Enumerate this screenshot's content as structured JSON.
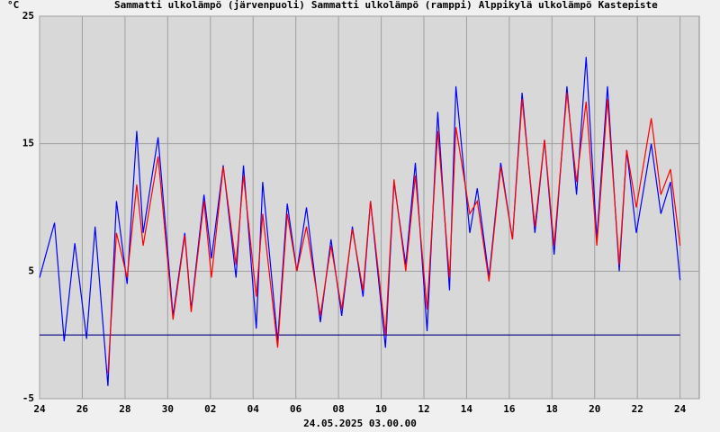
{
  "chart_data": {
    "type": "line",
    "y_label": "°C",
    "x_label": "24.05.2025 03.00.00",
    "xlim": [
      0,
      30.9
    ],
    "ylim": [
      -5,
      25
    ],
    "yticks": [
      -5,
      5,
      15,
      25
    ],
    "xticks": [
      {
        "value": 0,
        "label": "24"
      },
      {
        "value": 2,
        "label": "26"
      },
      {
        "value": 4,
        "label": "28"
      },
      {
        "value": 6,
        "label": "30"
      },
      {
        "value": 8,
        "label": "02"
      },
      {
        "value": 10,
        "label": "04"
      },
      {
        "value": 12,
        "label": "06"
      },
      {
        "value": 14,
        "label": "08"
      },
      {
        "value": 16,
        "label": "10"
      },
      {
        "value": 18,
        "label": "12"
      },
      {
        "value": 20,
        "label": "14"
      },
      {
        "value": 22,
        "label": "16"
      },
      {
        "value": 24,
        "label": "18"
      },
      {
        "value": 26,
        "label": "20"
      },
      {
        "value": 28,
        "label": "22"
      },
      {
        "value": 30,
        "label": "24"
      }
    ],
    "grid": true,
    "x": [
      0,
      0.7,
      1.15,
      1.65,
      2.2,
      2.6,
      3.2,
      3.6,
      4.1,
      4.55,
      4.85,
      5.55,
      6.25,
      6.8,
      7.1,
      7.7,
      8.05,
      8.6,
      9.2,
      9.55,
      10.15,
      10.45,
      11.15,
      11.6,
      12.05,
      12.5,
      13.15,
      13.65,
      14.15,
      14.65,
      15.15,
      15.5,
      16.2,
      16.6,
      17.15,
      17.6,
      18.15,
      18.65,
      19.2,
      19.5,
      20.15,
      20.5,
      21.05,
      21.6,
      22.15,
      22.6,
      23.2,
      23.65,
      24.1,
      24.7,
      25.15,
      25.6,
      26.1,
      26.6,
      27.15,
      27.5,
      27.95,
      28.65,
      29.1,
      29.55,
      30
    ],
    "series": [
      {
        "name": "Sammatti ulkolämpö (järvenpuoli)",
        "color": "#0000ff",
        "legend_color": "#000099",
        "values": [
          4.5,
          8.8,
          -0.5,
          7.2,
          -0.3,
          8.5,
          -4,
          10.5,
          4,
          16,
          8,
          15.5,
          1.5,
          8,
          2,
          11,
          6,
          13.3,
          4.5,
          13.3,
          0.5,
          12,
          -0.5,
          10.3,
          5,
          10,
          1,
          7.5,
          1.5,
          8.5,
          3,
          10.5,
          -1,
          12,
          5.5,
          13.5,
          0.3,
          17.5,
          3.5,
          19.5,
          8,
          11.5,
          4.5,
          13.5,
          7.5,
          19,
          8,
          15.3,
          6.3,
          19.5,
          11,
          21.8,
          7.5,
          19.5,
          5,
          14.5,
          8,
          15,
          9.5,
          12,
          4.3
        ]
      },
      {
        "name": "Sammatti ulkolämpö (ramppi)",
        "color": "#000080",
        "legend_color": "#000099",
        "values": [
          0,
          0,
          0,
          0,
          0,
          0,
          0,
          0,
          0,
          0,
          0,
          0,
          0,
          0,
          0,
          0,
          0,
          0,
          0,
          0,
          0,
          0,
          0,
          0,
          0,
          0,
          0,
          0,
          0,
          0,
          0,
          0,
          0,
          0,
          0,
          0,
          0,
          0,
          0,
          0,
          0,
          0,
          0,
          0,
          0,
          0,
          0,
          0,
          0,
          0,
          0,
          0,
          0,
          0,
          0,
          0,
          0,
          0,
          0,
          0,
          0
        ]
      },
      {
        "name": "Alppikylä ulkolämpö",
        "color": "#ff0000",
        "legend_color": "#ff0000",
        "values": [
          null,
          null,
          null,
          null,
          null,
          null,
          -3,
          8,
          4.5,
          11.8,
          7,
          14,
          1.2,
          7.8,
          1.8,
          10.5,
          4.5,
          13.2,
          5.5,
          12.5,
          3,
          9.5,
          -1,
          9.5,
          5,
          8.5,
          1.5,
          7,
          2,
          8.3,
          3.5,
          10.5,
          0,
          12.2,
          5,
          12.5,
          2,
          16,
          4.5,
          16.3,
          9.5,
          10.5,
          4.2,
          13.2,
          7.5,
          18.5,
          8.5,
          15.3,
          7,
          19,
          12,
          18.3,
          7,
          18.5,
          5.5,
          14.5,
          10,
          17,
          11,
          13,
          7
        ]
      },
      {
        "name": "Kastepiste",
        "color": "#008000",
        "legend_color": "#008000",
        "values": [
          null,
          null,
          null,
          null,
          null,
          null,
          null,
          null,
          null,
          null,
          null,
          null,
          null,
          null,
          null,
          null,
          null,
          null,
          null,
          null,
          null,
          null,
          null,
          null,
          null,
          null,
          null,
          null,
          null,
          null,
          null,
          null,
          null,
          null,
          null,
          null,
          null,
          null,
          null,
          null,
          null,
          null,
          null,
          null,
          null,
          null,
          null,
          null,
          null,
          null,
          null,
          null,
          null,
          null,
          null,
          null,
          null,
          null,
          null,
          null,
          null
        ]
      }
    ]
  }
}
